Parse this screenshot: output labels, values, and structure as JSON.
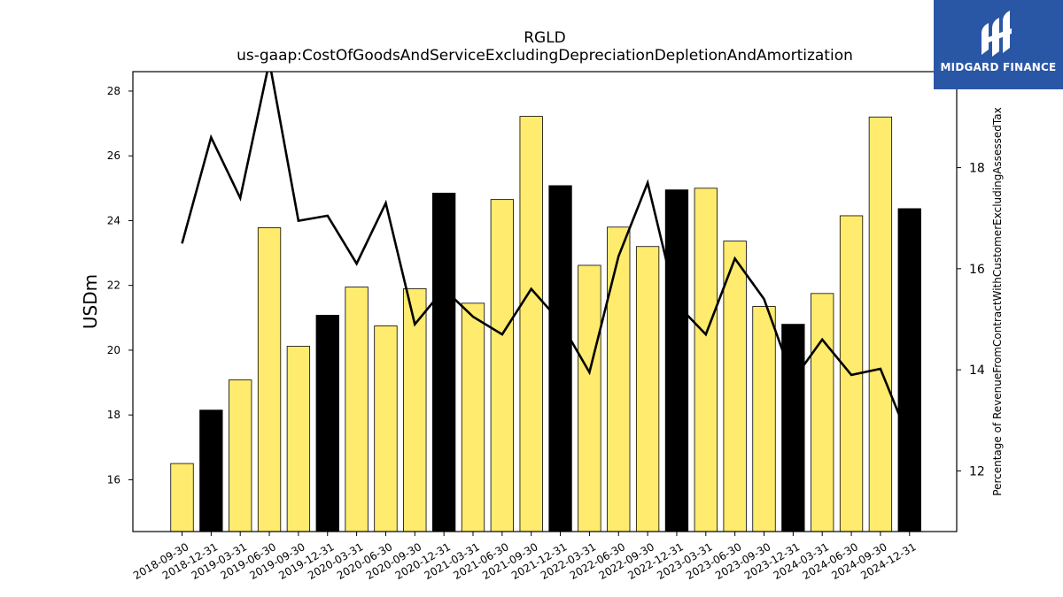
{
  "chart_data": {
    "type": "bar",
    "title": "RGLD",
    "subtitle": "us-gaap:CostOfGoodsAndServiceExcludingDepreciationDepletionAndAmortization",
    "ylabel": "USDm",
    "ylabel_right": "Percentage of RevenueFromContractWithCustomerExcludingAssessedTax",
    "ylim": [
      14.4,
      28.6
    ],
    "ylim_right": [
      10.8,
      19.9
    ],
    "yticks": [
      16,
      18,
      20,
      22,
      24,
      26,
      28
    ],
    "yticks_right": [
      12,
      14,
      16,
      18
    ],
    "categories": [
      "2018-09-30",
      "2018-12-31",
      "2019-03-31",
      "2019-06-30",
      "2019-09-30",
      "2019-12-31",
      "2020-03-31",
      "2020-06-30",
      "2020-09-30",
      "2020-12-31",
      "2021-03-31",
      "2021-06-30",
      "2021-09-30",
      "2021-12-31",
      "2022-03-31",
      "2022-06-30",
      "2022-09-30",
      "2022-12-31",
      "2023-03-31",
      "2023-06-30",
      "2023-09-30",
      "2023-12-31",
      "2024-03-31",
      "2024-06-30",
      "2024-09-30",
      "2024-12-31"
    ],
    "series": [
      {
        "values": [
          16.5,
          18.15,
          19.08,
          23.78,
          20.12,
          21.08,
          21.95,
          20.75,
          21.9,
          24.85,
          21.45,
          24.65,
          27.22,
          25.08,
          22.62,
          23.8,
          23.2,
          24.95,
          25.0,
          23.37,
          21.35,
          20.8,
          21.75,
          24.15,
          27.2,
          24.37
        ],
        "colors": [
          "#ffeb6e",
          "#000000",
          "#ffeb6e",
          "#ffeb6e",
          "#ffeb6e",
          "#000000",
          "#ffeb6e",
          "#ffeb6e",
          "#ffeb6e",
          "#000000",
          "#ffeb6e",
          "#ffeb6e",
          "#ffeb6e",
          "#000000",
          "#ffeb6e",
          "#ffeb6e",
          "#ffeb6e",
          "#000000",
          "#ffeb6e",
          "#ffeb6e",
          "#ffeb6e",
          "#000000",
          "#ffeb6e",
          "#ffeb6e",
          "#ffeb6e",
          "#000000"
        ]
      },
      {
        "type": "line",
        "axis": "right",
        "color": "#000000",
        "values": [
          16.5,
          18.6,
          17.4,
          20.1,
          16.95,
          17.05,
          16.1,
          17.3,
          14.9,
          15.6,
          15.05,
          14.7,
          15.6,
          14.95,
          13.95,
          16.25,
          17.7,
          15.3,
          14.7,
          16.2,
          15.4,
          13.8,
          14.6,
          13.9,
          14.02,
          12.6
        ]
      }
    ],
    "grid": false,
    "legend": "none"
  },
  "brand": {
    "name": "MIDGARD FINANCE",
    "color": "#2a56a6",
    "icon": "midgard-logo-icon"
  }
}
